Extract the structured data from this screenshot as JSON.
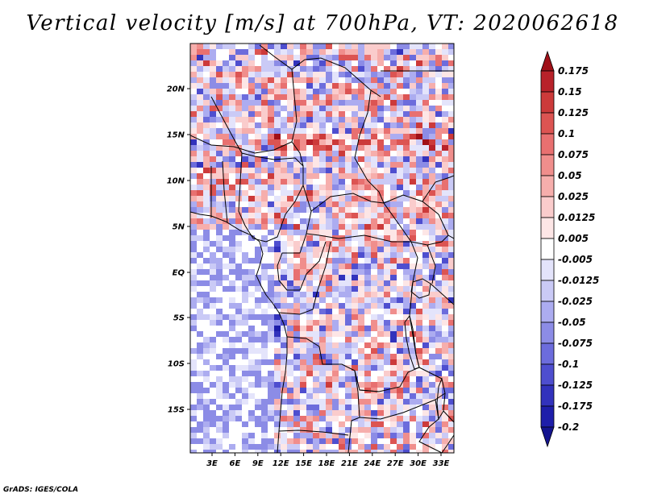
{
  "title": "Vertical velocity [m/s] at 700hPa, VT: 2020062618",
  "footer": "GrADS: IGES/COLA",
  "lat_labels": [
    "20N",
    "15N",
    "10N",
    "5N",
    "EQ",
    "5S",
    "10S",
    "15S"
  ],
  "lon_labels": [
    "3E",
    "6E",
    "9E",
    "12E",
    "15E",
    "18E",
    "21E",
    "24E",
    "27E",
    "30E",
    "33E"
  ],
  "colorbar": {
    "labels": [
      "0.175",
      "0.15",
      "0.125",
      "0.1",
      "0.075",
      "0.05",
      "0.025",
      "0.0125",
      "0.005",
      "-0.005",
      "-0.0125",
      "-0.025",
      "-0.05",
      "-0.075",
      "-0.1",
      "-0.125",
      "-0.175",
      "-0.2"
    ],
    "colors": [
      "#a01018",
      "#b8222a",
      "#cc3a3a",
      "#dc5452",
      "#e87070",
      "#f08e8c",
      "#f6aeac",
      "#facccc",
      "#fde6e6",
      "#ffffff",
      "#e4e4fb",
      "#cacaf6",
      "#acacf0",
      "#8c8ce6",
      "#6c6cdc",
      "#4e4ecf",
      "#3232bc",
      "#1e1eaa",
      "#14148f"
    ]
  }
}
